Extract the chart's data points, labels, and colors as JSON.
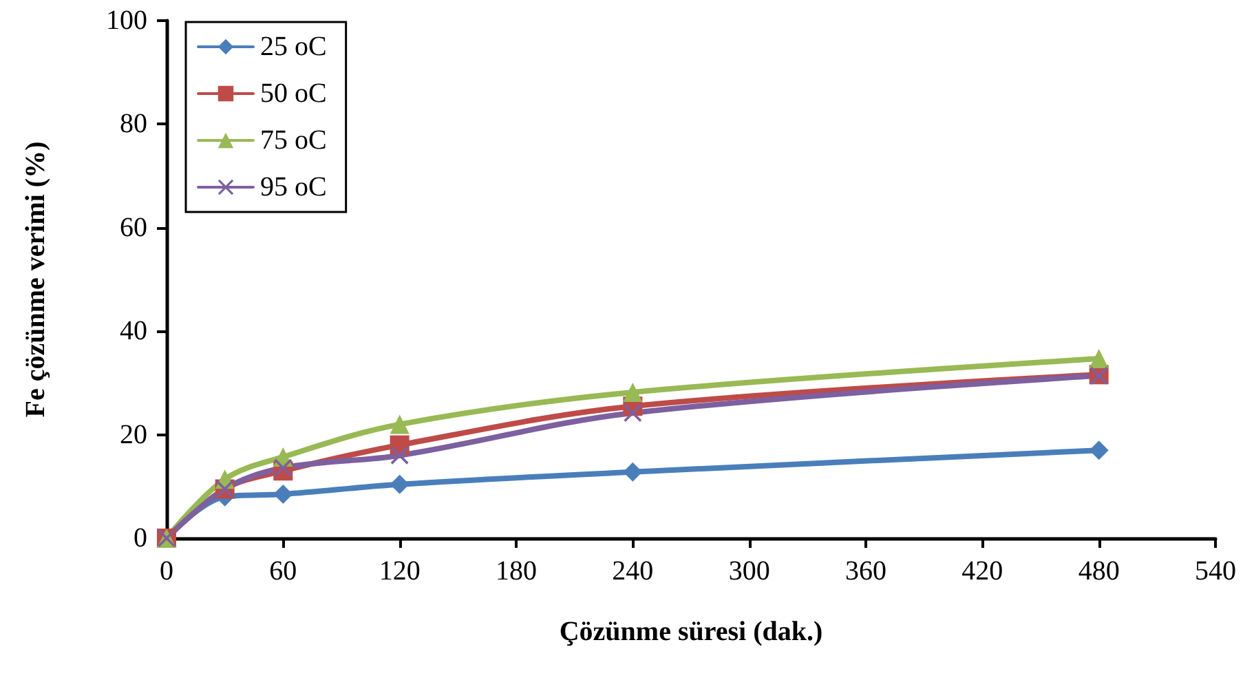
{
  "chart_data": {
    "type": "line",
    "xlabel": "Çözünme süresi (dak.)",
    "ylabel": "Fe çözünme verimi (%)",
    "xlim": [
      0,
      540
    ],
    "xticks": [
      0,
      60,
      120,
      180,
      240,
      300,
      360,
      420,
      480,
      540
    ],
    "ylim": [
      0,
      100
    ],
    "yticks": [
      0,
      20,
      40,
      60,
      80,
      100
    ],
    "grid": false,
    "legend": "top left",
    "line_style": "solid",
    "series": [
      {
        "name": "25 oC",
        "color": "#4a7ebb",
        "marker": "diamond",
        "x": [
          0,
          30,
          60,
          120,
          240,
          480
        ],
        "values": [
          0,
          8,
          8.5,
          10.4,
          12.8,
          17
        ]
      },
      {
        "name": "50 oC",
        "color": "#be4b48",
        "marker": "square",
        "x": [
          0,
          30,
          60,
          120,
          240,
          480
        ],
        "values": [
          0,
          9.5,
          13,
          18,
          25.5,
          31.6
        ]
      },
      {
        "name": "75 oC",
        "color": "#98b954",
        "marker": "triangle",
        "x": [
          0,
          30,
          60,
          120,
          240,
          480
        ],
        "values": [
          0,
          11.4,
          15.7,
          22,
          28.2,
          34.7
        ]
      },
      {
        "name": "95 oC",
        "color": "#7d60a0",
        "marker": "cross",
        "x": [
          0,
          30,
          60,
          120,
          240,
          480
        ],
        "values": [
          0,
          9.5,
          13.6,
          16,
          24.2,
          31.4
        ]
      }
    ]
  }
}
